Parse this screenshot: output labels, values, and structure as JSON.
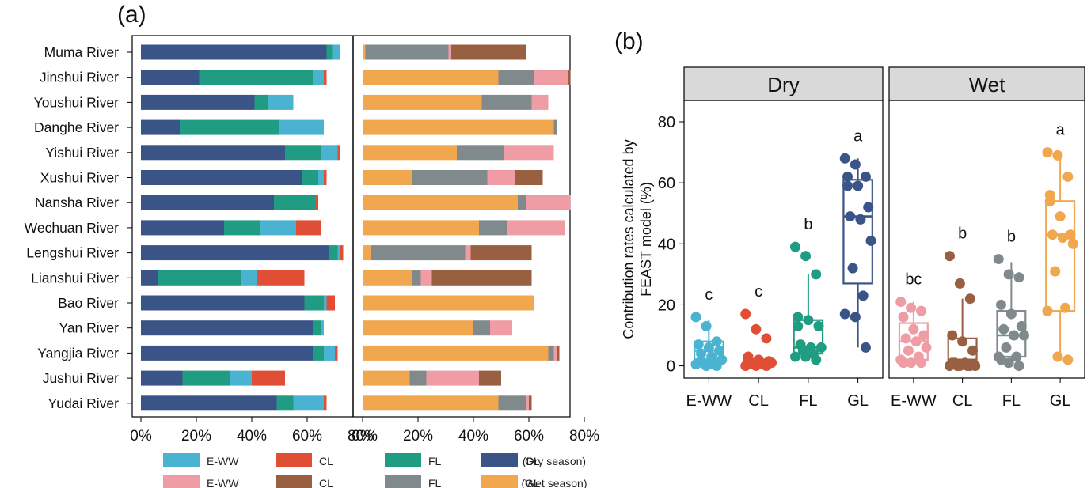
{
  "panel_a": {
    "label": "(a)",
    "chart_data": {
      "type": "bar",
      "orientation": "horizontal-stacked",
      "categories": [
        "Muma River",
        "Jinshui River",
        "Youshui River",
        "Danghe River",
        "Yishui River",
        "Xushui River",
        "Nansha River",
        "Wechuan River",
        "Lengshui River",
        "Lianshui River",
        "Bao River",
        "Yan River",
        "Yangjia River",
        "Jushui River",
        "Yudai River"
      ],
      "xticks": [
        "0%",
        "20%",
        "40%",
        "60%",
        "80%"
      ],
      "xlim": [
        0,
        80
      ],
      "dry": {
        "order": [
          "GL",
          "FL",
          "E-WW",
          "CL"
        ],
        "series": [
          {
            "name": "GL",
            "color": "#3b5488",
            "values": [
              67,
              21,
              41,
              14,
              52,
              58,
              48,
              30,
              68,
              6,
              59,
              62,
              62,
              15,
              49
            ]
          },
          {
            "name": "FL",
            "color": "#1f9c81",
            "values": [
              2,
              41,
              5,
              36,
              13,
              6,
              15,
              13,
              3,
              30,
              7,
              3,
              4,
              17,
              6
            ]
          },
          {
            "name": "E-WW",
            "color": "#4bb3d2",
            "values": [
              3,
              4,
              9,
              16,
              6,
              2,
              0,
              13,
              1,
              6,
              1,
              1,
              4,
              8,
              11
            ]
          },
          {
            "name": "CL",
            "color": "#e04e35",
            "values": [
              0,
              1,
              0,
              0,
              1,
              1,
              1,
              9,
              1,
              17,
              3,
              0,
              1,
              12,
              1
            ]
          }
        ]
      },
      "wet": {
        "order": [
          "GL",
          "FL",
          "E-WW",
          "CL"
        ],
        "series": [
          {
            "name": "GL",
            "color": "#f0a74e",
            "values": [
              1,
              49,
              43,
              69,
              34,
              18,
              56,
              42,
              3,
              18,
              62,
              40,
              67,
              17,
              49
            ]
          },
          {
            "name": "FL",
            "color": "#808a8c",
            "values": [
              30,
              13,
              18,
              1,
              17,
              27,
              3,
              10,
              34,
              3,
              0,
              6,
              2,
              6,
              10
            ]
          },
          {
            "name": "E-WW",
            "color": "#ef9ca4",
            "values": [
              1,
              12,
              6,
              0,
              18,
              10,
              16,
              21,
              2,
              4,
              0,
              8,
              1,
              19,
              1
            ]
          },
          {
            "name": "CL",
            "color": "#985f40",
            "values": [
              27,
              1,
              0,
              0,
              0,
              10,
              0,
              0,
              22,
              36,
              0,
              0,
              1,
              8,
              1
            ]
          }
        ]
      },
      "legend": {
        "rows": [
          {
            "items": [
              {
                "label": "E-WW",
                "color": "#4bb3d2"
              },
              {
                "label": "CL",
                "color": "#e04e35"
              },
              {
                "label": "FL",
                "color": "#1f9c81"
              },
              {
                "label": "GL",
                "color": "#3b5488"
              }
            ],
            "note": "(Dry season)"
          },
          {
            "items": [
              {
                "label": "E-WW",
                "color": "#ef9ca4"
              },
              {
                "label": "CL",
                "color": "#985f40"
              },
              {
                "label": "FL",
                "color": "#808a8c"
              },
              {
                "label": "GL",
                "color": "#f0a74e"
              }
            ],
            "note": "(Wet season)"
          }
        ]
      }
    }
  },
  "panel_b": {
    "label": "(b)",
    "chart_data": {
      "type": "box",
      "ylabel": "Contribution rates calculated by FEAST model (%)",
      "ylim": [
        -4,
        87
      ],
      "yticks": [
        0,
        20,
        40,
        60,
        80
      ],
      "grid": false,
      "facets": [
        {
          "title": "Dry",
          "groups": [
            {
              "name": "E-WW",
              "color": "#4bb3d2",
              "letter": "c",
              "q1": 2,
              "median": 5,
              "q3": 8,
              "whisker_low": 0,
              "whisker_high": 15,
              "points": [
                16,
                13,
                8,
                7,
                6,
                5,
                4,
                3,
                2,
                1,
                0.5,
                0.5,
                0,
                0,
                1
              ]
            },
            {
              "name": "CL",
              "color": "#e04e35",
              "letter": "c",
              "q1": 0.5,
              "median": 1,
              "q3": 2,
              "whisker_low": 0,
              "whisker_high": 3,
              "points": [
                17,
                12,
                9,
                3,
                2,
                1.5,
                1,
                1,
                1,
                0.5,
                0.5,
                0,
                0,
                0,
                1
              ]
            },
            {
              "name": "FL",
              "color": "#1f9c81",
              "letter": "b",
              "q1": 4,
              "median": 6,
              "q3": 15,
              "whisker_low": 2,
              "whisker_high": 30,
              "points": [
                39,
                36,
                30,
                16,
                15,
                13,
                7,
                6,
                6,
                5,
                4,
                3,
                3,
                2,
                13
              ]
            },
            {
              "name": "GL",
              "color": "#3b5488",
              "letter": "a",
              "q1": 27,
              "median": 49,
              "q3": 61,
              "whisker_low": 6,
              "whisker_high": 68,
              "points": [
                68,
                66,
                62,
                62,
                59,
                52,
                49,
                48,
                41,
                32,
                23,
                17,
                16,
                6,
                59
              ]
            }
          ]
        },
        {
          "title": "Wet",
          "groups": [
            {
              "name": "E-WW",
              "color": "#ef9ca4",
              "letter": "bc",
              "q1": 2,
              "median": 8,
              "q3": 14,
              "whisker_low": 0,
              "whisker_high": 21,
              "points": [
                21,
                19,
                18,
                16,
                12,
                10,
                9,
                8,
                6,
                5,
                3,
                2,
                1,
                1,
                1
              ]
            },
            {
              "name": "CL",
              "color": "#985f40",
              "letter": "b",
              "q1": 0,
              "median": 2,
              "q3": 9,
              "whisker_low": 0,
              "whisker_high": 22,
              "points": [
                36,
                27,
                22,
                10,
                8,
                5,
                1,
                1,
                0,
                0,
                0,
                0,
                0,
                0,
                1
              ]
            },
            {
              "name": "FL",
              "color": "#808a8c",
              "letter": "b",
              "q1": 3,
              "median": 10,
              "q3": 18,
              "whisker_low": 0,
              "whisker_high": 34,
              "points": [
                35,
                30,
                29,
                20,
                17,
                13,
                12,
                10,
                10,
                6,
                3,
                3,
                1,
                0,
                2
              ]
            },
            {
              "name": "GL",
              "color": "#f0a74e",
              "letter": "a",
              "q1": 18,
              "median": 43,
              "q3": 54,
              "whisker_low": 2,
              "whisker_high": 70,
              "points": [
                70,
                69,
                62,
                56,
                49,
                43,
                43,
                42,
                40,
                31,
                19,
                18,
                3,
                2,
                54
              ]
            }
          ]
        }
      ]
    }
  }
}
